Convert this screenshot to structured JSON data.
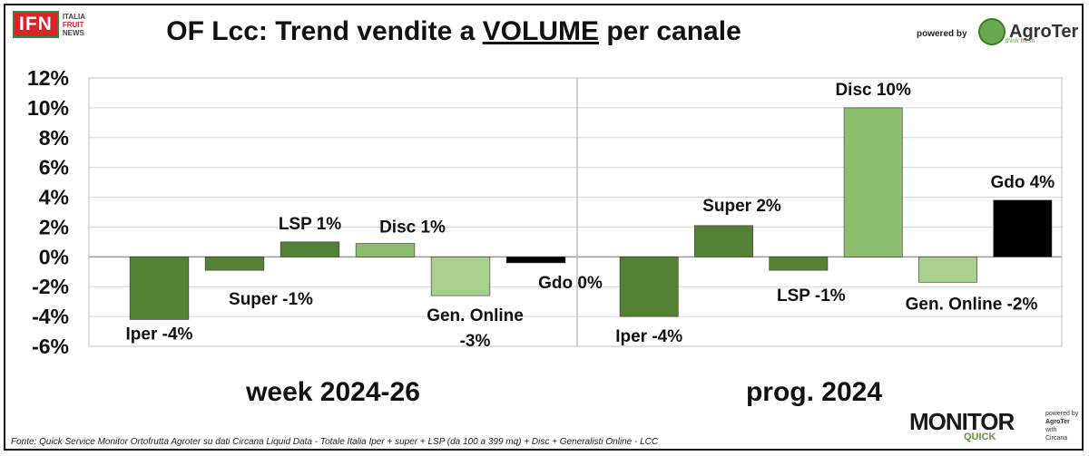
{
  "brand": {
    "ifn_mark": "IFN",
    "ifn_lines": [
      "ITALIA",
      "FRUIT",
      "NEWS"
    ],
    "powered_by": "powered by",
    "agroter": "AgroTer",
    "agroter_tagline": "think fresh",
    "monitor": "MONITOR",
    "monitor_quick": "QUICK",
    "monitor_side": [
      "powered by",
      "AgroTer",
      "with",
      "Circana"
    ]
  },
  "title": {
    "prefix": "OF Lcc: Trend vendite a ",
    "underlined": "VOLUME",
    "suffix": " per canale"
  },
  "footer": "Fonte: Quick Service Monitor Ortofrutta Agroter su dati Circana Liquid Data - Totale Italia Iper + super + LSP (da 100 a 399 mq) + Disc + Generalisti Online - LCC",
  "chart_data": [
    {
      "type": "bar",
      "title": "week 2024-26",
      "categories": [
        "Iper",
        "Super",
        "LSP",
        "Disc",
        "Gen. Online",
        "Gdo"
      ],
      "values": [
        -4.2,
        -0.9,
        1.0,
        0.9,
        -2.6,
        -0.4
      ],
      "data_labels": [
        "Iper -4%",
        "Super -1%",
        "LSP 1%",
        "Disc 1%",
        "Gen. Online -3%",
        "Gdo 0%"
      ],
      "colors": [
        "#548235",
        "#548235",
        "#548235",
        "#8bbd6c",
        "#a9d08e",
        "#000000"
      ],
      "ylim": [
        -6,
        12
      ],
      "yticks": [
        "-6%",
        "-4%",
        "-2%",
        "0%",
        "2%",
        "4%",
        "6%",
        "8%",
        "10%",
        "12%"
      ],
      "grid": true
    },
    {
      "type": "bar",
      "title": "prog. 2024",
      "categories": [
        "Iper",
        "Super",
        "LSP",
        "Disc",
        "Gen. Online",
        "Gdo"
      ],
      "values": [
        -4.0,
        2.1,
        -0.9,
        10.0,
        -1.7,
        3.8
      ],
      "data_labels": [
        "Iper -4%",
        "Super 2%",
        "LSP -1%",
        "Disc 10%",
        "Gen. Online -2%",
        "Gdo 4%"
      ],
      "colors": [
        "#548235",
        "#548235",
        "#548235",
        "#8bbd6c",
        "#a9d08e",
        "#000000"
      ],
      "ylim": [
        -6,
        12
      ],
      "grid": true
    }
  ]
}
